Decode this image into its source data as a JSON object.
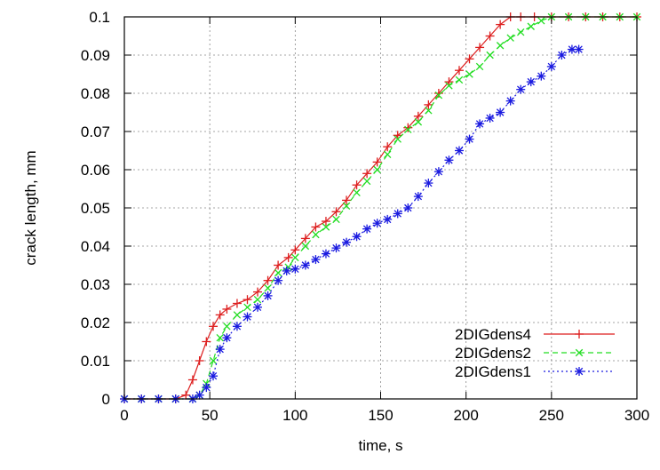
{
  "chart_data": {
    "type": "line",
    "title": "",
    "xlabel": "time, s",
    "ylabel": "crack length, mm",
    "xlim": [
      0,
      300
    ],
    "ylim": [
      0,
      0.1
    ],
    "xticks": [
      0,
      50,
      100,
      150,
      200,
      250,
      300
    ],
    "yticks": [
      0,
      0.01,
      0.02,
      0.03,
      0.04,
      0.05,
      0.06,
      0.07,
      0.08,
      0.09,
      0.1
    ],
    "xtick_labels": [
      "0",
      "50",
      "100",
      "150",
      "200",
      "250",
      "300"
    ],
    "ytick_labels": [
      "0",
      "0.01",
      "0.02",
      "0.03",
      "0.04",
      "0.05",
      "0.06",
      "0.07",
      "0.08",
      "0.09",
      "0.1"
    ],
    "grid": true,
    "legend_position": "bottom-right",
    "series": [
      {
        "name": "2DIGdens4",
        "color": "#dd1f1f",
        "marker": "plus",
        "line": "solid",
        "x": [
          0,
          10,
          20,
          30,
          36,
          40,
          44,
          48,
          52,
          56,
          60,
          66,
          72,
          78,
          84,
          90,
          96,
          100,
          106,
          112,
          118,
          124,
          130,
          136,
          142,
          148,
          154,
          160,
          166,
          172,
          178,
          184,
          190,
          196,
          202,
          208,
          214,
          220,
          226,
          232,
          240,
          250,
          260,
          270,
          280,
          290,
          300
        ],
        "y": [
          0,
          0,
          0,
          0,
          0.001,
          0.005,
          0.01,
          0.015,
          0.019,
          0.022,
          0.0235,
          0.025,
          0.026,
          0.028,
          0.031,
          0.035,
          0.037,
          0.039,
          0.042,
          0.045,
          0.0465,
          0.049,
          0.052,
          0.056,
          0.059,
          0.062,
          0.066,
          0.069,
          0.071,
          0.074,
          0.077,
          0.08,
          0.083,
          0.086,
          0.089,
          0.092,
          0.095,
          0.098,
          0.1,
          0.1,
          0.1,
          0.1,
          0.1,
          0.1,
          0.1,
          0.1,
          0.1
        ]
      },
      {
        "name": "2DIGdens2",
        "color": "#22dd22",
        "marker": "x",
        "line": "dashed",
        "x": [
          0,
          10,
          20,
          30,
          40,
          44,
          48,
          52,
          56,
          60,
          66,
          72,
          78,
          84,
          90,
          96,
          100,
          106,
          112,
          118,
          124,
          130,
          136,
          142,
          148,
          154,
          160,
          166,
          172,
          178,
          184,
          190,
          196,
          202,
          208,
          214,
          220,
          226,
          232,
          238,
          244,
          250,
          260,
          270,
          280,
          290,
          300
        ],
        "y": [
          0,
          0,
          0,
          0,
          0,
          0.001,
          0.004,
          0.01,
          0.016,
          0.019,
          0.022,
          0.024,
          0.026,
          0.029,
          0.033,
          0.0345,
          0.037,
          0.04,
          0.043,
          0.045,
          0.047,
          0.0505,
          0.054,
          0.057,
          0.06,
          0.064,
          0.068,
          0.0705,
          0.0725,
          0.0755,
          0.0795,
          0.082,
          0.0835,
          0.085,
          0.087,
          0.09,
          0.0925,
          0.0945,
          0.096,
          0.0975,
          0.099,
          0.1,
          0.1,
          0.1,
          0.1,
          0.1,
          0.1
        ]
      },
      {
        "name": "2DIGdens1",
        "color": "#1a1ae0",
        "marker": "star",
        "line": "dotted",
        "x": [
          0,
          10,
          20,
          30,
          40,
          44,
          48,
          52,
          56,
          60,
          66,
          72,
          78,
          84,
          90,
          95,
          100,
          106,
          112,
          118,
          124,
          130,
          136,
          142,
          148,
          154,
          160,
          166,
          172,
          178,
          184,
          190,
          196,
          202,
          208,
          214,
          220,
          226,
          232,
          238,
          244,
          250,
          256,
          262,
          266
        ],
        "y": [
          0,
          0,
          0,
          0,
          0,
          0.001,
          0.003,
          0.006,
          0.013,
          0.016,
          0.019,
          0.0215,
          0.024,
          0.027,
          0.031,
          0.0335,
          0.034,
          0.035,
          0.0365,
          0.038,
          0.0395,
          0.041,
          0.0425,
          0.0445,
          0.046,
          0.047,
          0.0485,
          0.05,
          0.053,
          0.0565,
          0.0595,
          0.0625,
          0.065,
          0.068,
          0.072,
          0.0735,
          0.075,
          0.078,
          0.081,
          0.083,
          0.0845,
          0.087,
          0.09,
          0.0915,
          0.0915
        ]
      }
    ]
  }
}
